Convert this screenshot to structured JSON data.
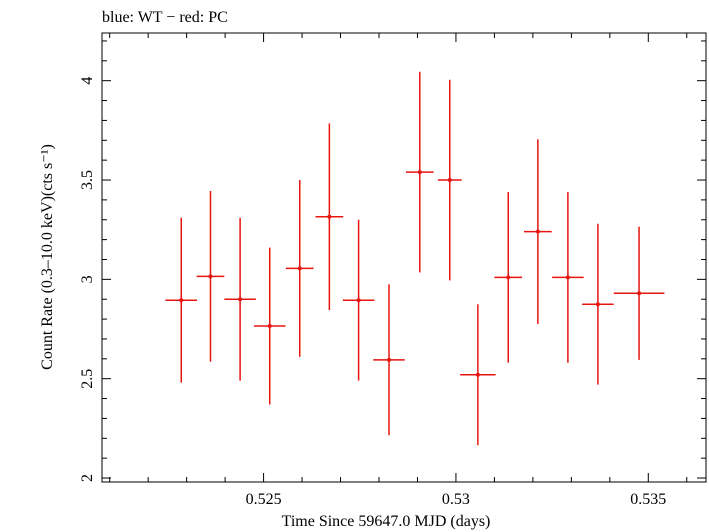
{
  "chart_data": {
    "type": "scatter",
    "title": "blue: WT − red: PC",
    "xlabel": "Time Since 59647.0 MJD (days)",
    "ylabel": "Count Rate (0.3–10.0 keV)(cts s⁻¹)",
    "xlim": [
      0.5208,
      0.5365
    ],
    "ylim": [
      1.98,
      4.24
    ],
    "x_ticks": [
      {
        "value": 0.525,
        "label": "0.525"
      },
      {
        "value": 0.53,
        "label": "0.53"
      },
      {
        "value": 0.535,
        "label": "0.535"
      }
    ],
    "y_ticks": [
      {
        "value": 2,
        "label": "2"
      },
      {
        "value": 2.5,
        "label": "2.5"
      },
      {
        "value": 3,
        "label": "3"
      },
      {
        "value": 3.5,
        "label": "3.5"
      },
      {
        "value": 4,
        "label": "4"
      }
    ],
    "grid": false,
    "series": [
      {
        "color": "#e8150f",
        "points": [
          {
            "x": 0.52286,
            "xerr": 0.00041,
            "y": 2.895,
            "yerr": 0.415
          },
          {
            "x": 0.52362,
            "xerr": 0.00036,
            "y": 3.015,
            "yerr": 0.43
          },
          {
            "x": 0.52439,
            "xerr": 0.00041,
            "y": 2.9,
            "yerr": 0.41
          },
          {
            "x": 0.52516,
            "xerr": 0.00041,
            "y": 2.765,
            "yerr": 0.395
          },
          {
            "x": 0.52594,
            "xerr": 0.00036,
            "y": 3.055,
            "yerr": 0.445
          },
          {
            "x": 0.52671,
            "xerr": 0.00036,
            "y": 3.315,
            "yerr": 0.47
          },
          {
            "x": 0.52747,
            "xerr": 0.00041,
            "y": 2.895,
            "yerr": 0.405
          },
          {
            "x": 0.52826,
            "xerr": 0.00041,
            "y": 2.595,
            "yerr": 0.38
          },
          {
            "x": 0.52906,
            "xerr": 0.00036,
            "y": 3.54,
            "yerr": 0.505
          },
          {
            "x": 0.52984,
            "xerr": 0.00031,
            "y": 3.5,
            "yerr": 0.505
          },
          {
            "x": 0.53057,
            "xerr": 0.00046,
            "y": 2.52,
            "yerr": 0.355
          },
          {
            "x": 0.53136,
            "xerr": 0.00036,
            "y": 3.01,
            "yerr": 0.43
          },
          {
            "x": 0.53213,
            "xerr": 0.00036,
            "y": 3.24,
            "yerr": 0.465
          },
          {
            "x": 0.53291,
            "xerr": 0.00041,
            "y": 3.01,
            "yerr": 0.43
          },
          {
            "x": 0.53369,
            "xerr": 0.00041,
            "y": 2.875,
            "yerr": 0.405
          },
          {
            "x": 0.53476,
            "xerr": 0.00066,
            "y": 2.93,
            "yerr": 0.335
          }
        ]
      }
    ]
  }
}
